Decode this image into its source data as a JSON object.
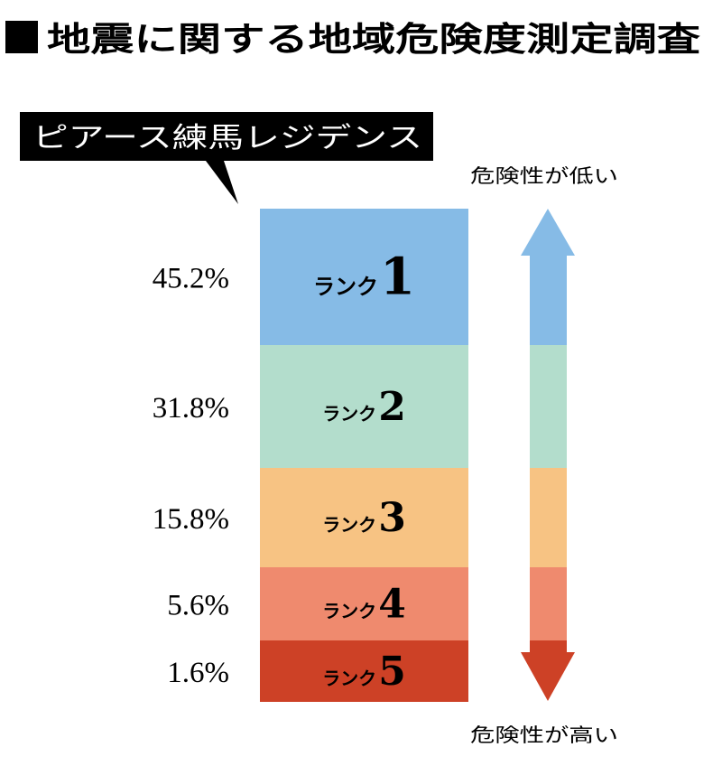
{
  "title": "地震に関する地域危険度測定調査",
  "callout_label": "ピアース練馬レジデンス",
  "arrow_top_label": "危険性が低い",
  "arrow_bottom_label": "危険性が高い",
  "colors": {
    "rank1": "#86bbe6",
    "rank2": "#b3ddcc",
    "rank3": "#f7c383",
    "rank4": "#ef8a6e",
    "rank5": "#cd4126",
    "callout_bg": "#000000",
    "callout_text": "#ffffff"
  },
  "chart_data": {
    "type": "bar",
    "stacked": true,
    "categories": [
      "ランク1",
      "ランク2",
      "ランク3",
      "ランク4",
      "ランク5"
    ],
    "rank_prefix": "ランク",
    "rank_numbers": [
      "1",
      "2",
      "3",
      "4",
      "5"
    ],
    "values": [
      45.2,
      31.8,
      15.8,
      5.6,
      1.6
    ],
    "value_labels": [
      "45.2%",
      "31.8%",
      "15.8%",
      "5.6%",
      "1.6%"
    ],
    "unit": "%",
    "highlighted_category": "ランク1"
  }
}
